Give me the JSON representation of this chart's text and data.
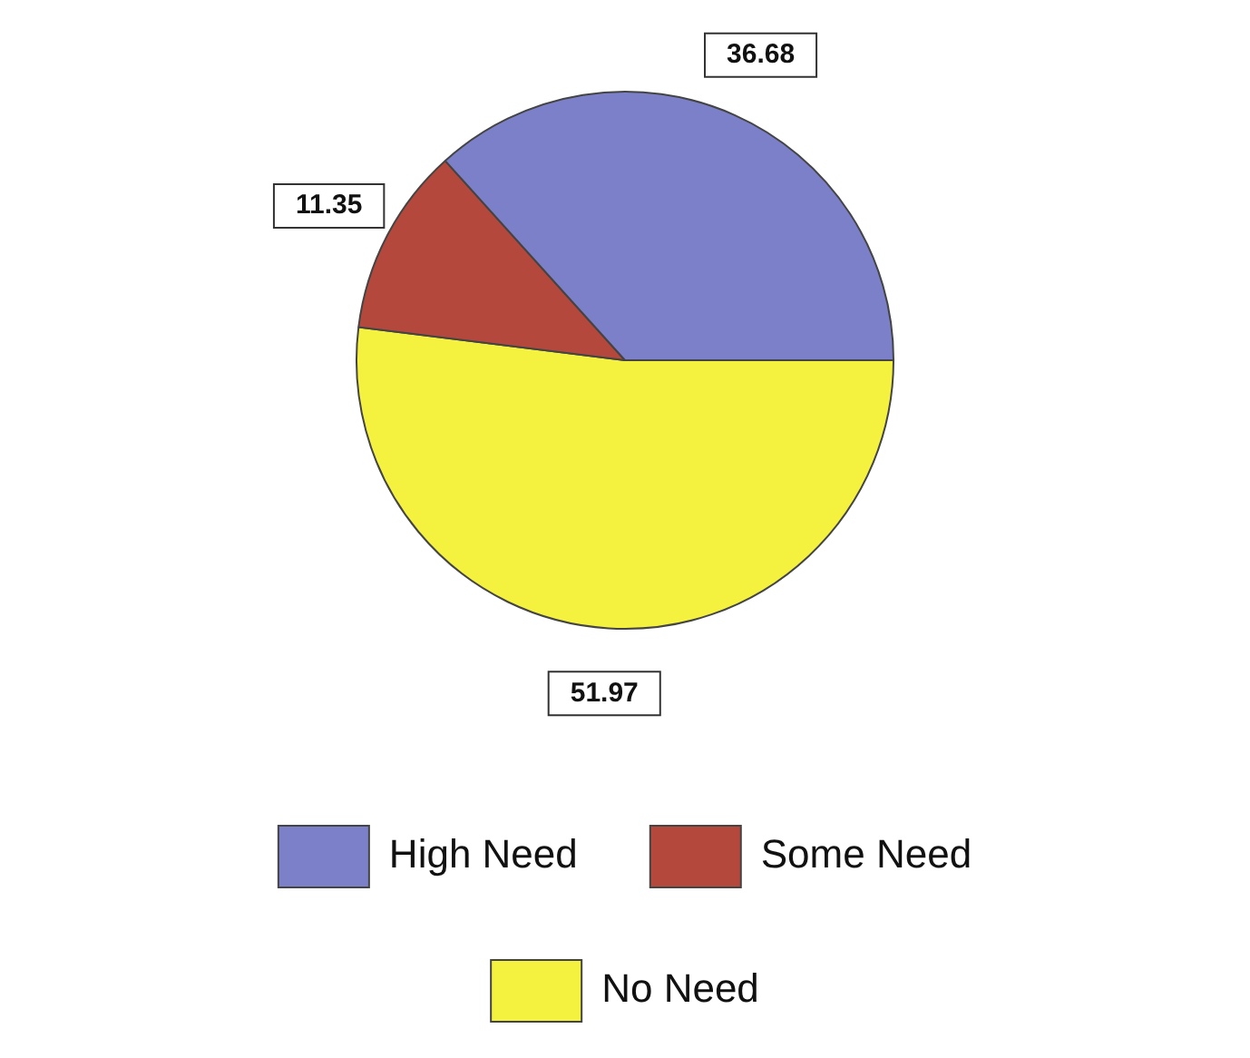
{
  "chart_data": {
    "type": "pie",
    "categories": [
      "High Need",
      "Some Need",
      "No Need"
    ],
    "values": [
      36.68,
      11.35,
      51.97
    ],
    "colors": [
      "#7b80c9",
      "#b5483c",
      "#f4f23e"
    ],
    "data_labels": true,
    "legend": "bottom"
  }
}
